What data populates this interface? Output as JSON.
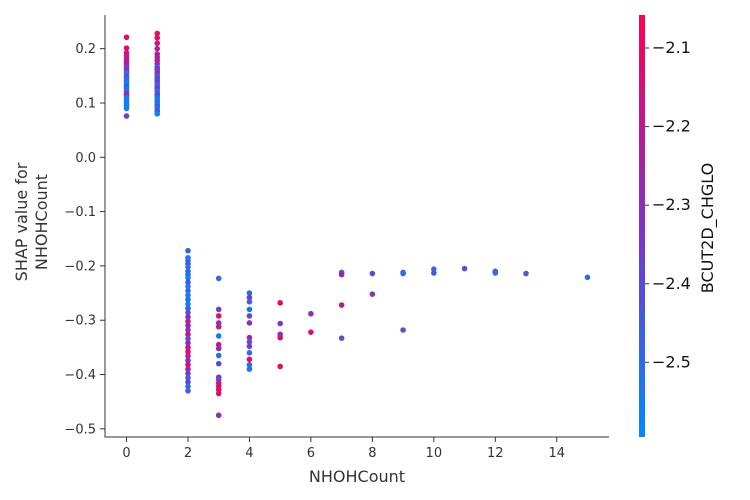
{
  "chart_data": {
    "type": "scatter",
    "title": "",
    "xlabel": "NHOHCount",
    "ylabel_lines": [
      "SHAP value for",
      "NHOHCount"
    ],
    "xlim": [
      -0.7,
      15.7
    ],
    "ylim": [
      -0.515,
      0.262
    ],
    "x_ticks": [
      0,
      2,
      4,
      6,
      8,
      10,
      12,
      14
    ],
    "x_tick_labels": [
      "0",
      "2",
      "4",
      "6",
      "8",
      "10",
      "12",
      "14"
    ],
    "y_ticks": [
      0.2,
      0.1,
      0.0,
      -0.1,
      -0.2,
      -0.3,
      -0.4,
      -0.5
    ],
    "y_tick_labels": [
      "0.2",
      "0.1",
      "0.0",
      "−0.1",
      "−0.2",
      "−0.3",
      "−0.4",
      "−0.5"
    ],
    "grid": false,
    "legend": "none",
    "colorbar": {
      "label": "BCUT2D_CHGLO",
      "range": [
        -2.595,
        -2.058
      ],
      "ticks": [
        -2.1,
        -2.2,
        -2.3,
        -2.4,
        -2.5
      ],
      "tick_labels": [
        "−2.1",
        "−2.2",
        "−2.3",
        "−2.4",
        "−2.5"
      ],
      "low_color": "#008afb",
      "mid_color": "#7d33c6",
      "high_color": "#ff0052"
    },
    "color_value_name": "BCUT2D_CHGLO",
    "points": [
      [
        0,
        0.221,
        -2.08
      ],
      [
        0,
        0.201,
        -2.1
      ],
      [
        0,
        0.192,
        -2.15
      ],
      [
        0,
        0.186,
        -2.2
      ],
      [
        0,
        0.18,
        -2.12
      ],
      [
        0,
        0.176,
        -2.3
      ],
      [
        0,
        0.172,
        -2.18
      ],
      [
        0,
        0.168,
        -2.25
      ],
      [
        0,
        0.164,
        -2.4
      ],
      [
        0,
        0.16,
        -2.22
      ],
      [
        0,
        0.156,
        -2.48
      ],
      [
        0,
        0.152,
        -2.55
      ],
      [
        0,
        0.148,
        -2.35
      ],
      [
        0,
        0.145,
        -2.5
      ],
      [
        0,
        0.141,
        -2.45
      ],
      [
        0,
        0.138,
        -2.56
      ],
      [
        0,
        0.134,
        -2.6
      ],
      [
        0,
        0.13,
        -2.42
      ],
      [
        0,
        0.126,
        -2.52
      ],
      [
        0,
        0.122,
        -2.58
      ],
      [
        0,
        0.118,
        -2.38
      ],
      [
        0,
        0.114,
        -2.1
      ],
      [
        0,
        0.11,
        -2.54
      ],
      [
        0,
        0.106,
        -2.59
      ],
      [
        0,
        0.102,
        -2.57
      ],
      [
        0,
        0.098,
        -2.53
      ],
      [
        0,
        0.094,
        -2.58
      ],
      [
        0,
        0.09,
        -2.56
      ],
      [
        0,
        0.076,
        -2.36
      ],
      [
        1,
        0.228,
        -2.12
      ],
      [
        1,
        0.22,
        -2.1
      ],
      [
        1,
        0.21,
        -2.15
      ],
      [
        1,
        0.2,
        -2.22
      ],
      [
        1,
        0.19,
        -2.18
      ],
      [
        1,
        0.184,
        -2.3
      ],
      [
        1,
        0.178,
        -2.14
      ],
      [
        1,
        0.172,
        -2.36
      ],
      [
        1,
        0.166,
        -2.44
      ],
      [
        1,
        0.162,
        -2.26
      ],
      [
        1,
        0.158,
        -2.4
      ],
      [
        1,
        0.154,
        -2.2
      ],
      [
        1,
        0.15,
        -2.5
      ],
      [
        1,
        0.146,
        -2.35
      ],
      [
        1,
        0.142,
        -2.46
      ],
      [
        1,
        0.138,
        -2.28
      ],
      [
        1,
        0.134,
        -2.52
      ],
      [
        1,
        0.13,
        -2.4
      ],
      [
        1,
        0.126,
        -2.32
      ],
      [
        1,
        0.122,
        -2.55
      ],
      [
        1,
        0.118,
        -2.45
      ],
      [
        1,
        0.114,
        -2.38
      ],
      [
        1,
        0.11,
        -2.5
      ],
      [
        1,
        0.106,
        -2.58
      ],
      [
        1,
        0.102,
        -2.48
      ],
      [
        1,
        0.098,
        -2.56
      ],
      [
        1,
        0.094,
        -2.42
      ],
      [
        1,
        0.09,
        -2.57
      ],
      [
        1,
        0.085,
        -2.4
      ],
      [
        1,
        0.08,
        -2.58
      ],
      [
        2,
        -0.172,
        -2.48
      ],
      [
        2,
        -0.185,
        -2.56
      ],
      [
        2,
        -0.19,
        -2.52
      ],
      [
        2,
        -0.196,
        -2.4
      ],
      [
        2,
        -0.202,
        -2.55
      ],
      [
        2,
        -0.21,
        -2.45
      ],
      [
        2,
        -0.216,
        -2.5
      ],
      [
        2,
        -0.222,
        -2.58
      ],
      [
        2,
        -0.23,
        -2.42
      ],
      [
        2,
        -0.238,
        -2.55
      ],
      [
        2,
        -0.246,
        -2.48
      ],
      [
        2,
        -0.254,
        -2.57
      ],
      [
        2,
        -0.262,
        -2.5
      ],
      [
        2,
        -0.27,
        -2.58
      ],
      [
        2,
        -0.278,
        -2.46
      ],
      [
        2,
        -0.286,
        -2.42
      ],
      [
        2,
        -0.294,
        -2.3
      ],
      [
        2,
        -0.302,
        -2.2
      ],
      [
        2,
        -0.31,
        -2.25
      ],
      [
        2,
        -0.318,
        -2.35
      ],
      [
        2,
        -0.326,
        -2.15
      ],
      [
        2,
        -0.334,
        -2.4
      ],
      [
        2,
        -0.342,
        -2.28
      ],
      [
        2,
        -0.35,
        -2.18
      ],
      [
        2,
        -0.358,
        -2.1
      ],
      [
        2,
        -0.366,
        -2.22
      ],
      [
        2,
        -0.374,
        -2.32
      ],
      [
        2,
        -0.382,
        -2.12
      ],
      [
        2,
        -0.39,
        -2.26
      ],
      [
        2,
        -0.398,
        -2.36
      ],
      [
        2,
        -0.406,
        -2.44
      ],
      [
        2,
        -0.414,
        -2.38
      ],
      [
        2,
        -0.422,
        -2.5
      ],
      [
        2,
        -0.43,
        -2.46
      ],
      [
        3,
        -0.223,
        -2.5
      ],
      [
        3,
        -0.28,
        -2.35
      ],
      [
        3,
        -0.292,
        -2.1
      ],
      [
        3,
        -0.305,
        -2.3
      ],
      [
        3,
        -0.312,
        -2.2
      ],
      [
        3,
        -0.329,
        -2.55
      ],
      [
        3,
        -0.345,
        -2.15
      ],
      [
        3,
        -0.352,
        -2.3
      ],
      [
        3,
        -0.365,
        -2.52
      ],
      [
        3,
        -0.38,
        -2.42
      ],
      [
        3,
        -0.405,
        -2.3
      ],
      [
        3,
        -0.41,
        -2.45
      ],
      [
        3,
        -0.416,
        -2.1
      ],
      [
        3,
        -0.422,
        -2.15
      ],
      [
        3,
        -0.428,
        -2.12
      ],
      [
        3,
        -0.435,
        -2.1
      ],
      [
        3,
        -0.475,
        -2.3
      ],
      [
        4,
        -0.25,
        -2.5
      ],
      [
        4,
        -0.258,
        -2.35
      ],
      [
        4,
        -0.266,
        -2.45
      ],
      [
        4,
        -0.28,
        -2.55
      ],
      [
        4,
        -0.292,
        -2.4
      ],
      [
        4,
        -0.305,
        -2.3
      ],
      [
        4,
        -0.332,
        -2.25
      ],
      [
        4,
        -0.34,
        -2.45
      ],
      [
        4,
        -0.348,
        -2.35
      ],
      [
        4,
        -0.36,
        -2.5
      ],
      [
        4,
        -0.372,
        -2.1
      ],
      [
        4,
        -0.382,
        -2.48
      ],
      [
        4,
        -0.39,
        -2.52
      ],
      [
        5,
        -0.268,
        -2.1
      ],
      [
        5,
        -0.306,
        -2.35
      ],
      [
        5,
        -0.326,
        -2.3
      ],
      [
        5,
        -0.332,
        -2.15
      ],
      [
        5,
        -0.385,
        -2.1
      ],
      [
        6,
        -0.288,
        -2.3
      ],
      [
        6,
        -0.322,
        -2.12
      ],
      [
        7,
        -0.212,
        -2.4
      ],
      [
        7,
        -0.216,
        -2.3
      ],
      [
        7,
        -0.272,
        -2.2
      ],
      [
        7,
        -0.333,
        -2.4
      ],
      [
        8,
        -0.214,
        -2.4
      ],
      [
        8,
        -0.252,
        -2.3
      ],
      [
        9,
        -0.212,
        -2.48
      ],
      [
        9,
        -0.214,
        -2.5
      ],
      [
        9,
        -0.318,
        -2.4
      ],
      [
        10,
        -0.206,
        -2.5
      ],
      [
        10,
        -0.213,
        -2.45
      ],
      [
        11,
        -0.205,
        -2.4
      ],
      [
        12,
        -0.21,
        -2.45
      ],
      [
        12,
        -0.213,
        -2.5
      ],
      [
        13,
        -0.214,
        -2.45
      ],
      [
        15,
        -0.221,
        -2.5
      ]
    ]
  }
}
